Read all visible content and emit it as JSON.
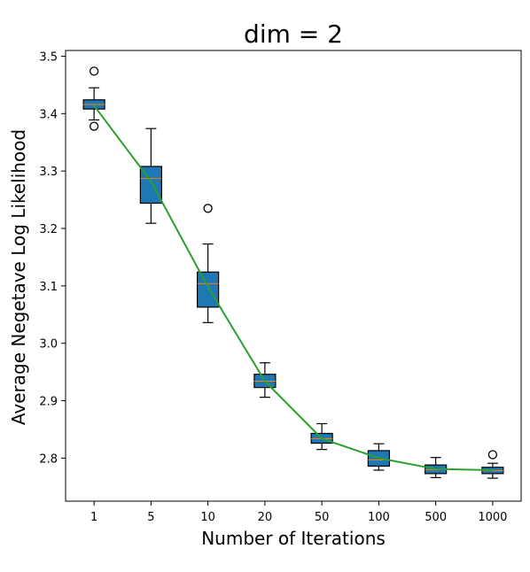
{
  "chart_data": {
    "type": "box",
    "title": "dim = 2",
    "xlabel": "Number of Iterations",
    "ylabel": "Average Negetave Log Likelihood",
    "categories": [
      "1",
      "5",
      "10",
      "20",
      "50",
      "100",
      "500",
      "1000"
    ],
    "ylim": [
      2.725,
      3.51
    ],
    "yticks": [
      "2.8",
      "2.9",
      "3.0",
      "3.1",
      "3.2",
      "3.3",
      "3.4",
      "3.5"
    ],
    "grid": false,
    "boxes": [
      {
        "label": "1",
        "whisker_low": 3.389,
        "q1": 3.408,
        "median": 3.416,
        "q3": 3.424,
        "whisker_high": 3.445,
        "outliers": [
          3.474,
          3.378
        ]
      },
      {
        "label": "5",
        "whisker_low": 3.209,
        "q1": 3.244,
        "median": 3.287,
        "q3": 3.308,
        "whisker_high": 3.374,
        "outliers": []
      },
      {
        "label": "10",
        "whisker_low": 3.036,
        "q1": 3.063,
        "median": 3.104,
        "q3": 3.124,
        "whisker_high": 3.173,
        "outliers": [
          3.235
        ]
      },
      {
        "label": "20",
        "whisker_low": 2.906,
        "q1": 2.923,
        "median": 2.934,
        "q3": 2.946,
        "whisker_high": 2.966,
        "outliers": []
      },
      {
        "label": "50",
        "whisker_low": 2.815,
        "q1": 2.826,
        "median": 2.834,
        "q3": 2.843,
        "whisker_high": 2.86,
        "outliers": []
      },
      {
        "label": "100",
        "whisker_low": 2.779,
        "q1": 2.786,
        "median": 2.797,
        "q3": 2.813,
        "whisker_high": 2.825,
        "outliers": []
      },
      {
        "label": "500",
        "whisker_low": 2.766,
        "q1": 2.773,
        "median": 2.78,
        "q3": 2.788,
        "whisker_high": 2.801,
        "outliers": []
      },
      {
        "label": "1000",
        "whisker_low": 2.765,
        "q1": 2.773,
        "median": 2.778,
        "q3": 2.784,
        "whisker_high": 2.791,
        "outliers": [
          2.806
        ]
      }
    ],
    "mean_line": [
      3.414,
      3.282,
      3.098,
      2.934,
      2.834,
      2.8,
      2.781,
      2.779
    ],
    "colors": {
      "box_fill": "#1f77b4",
      "median": "#ff7f0e",
      "line": "#2ca02c",
      "edge": "#000000"
    }
  }
}
